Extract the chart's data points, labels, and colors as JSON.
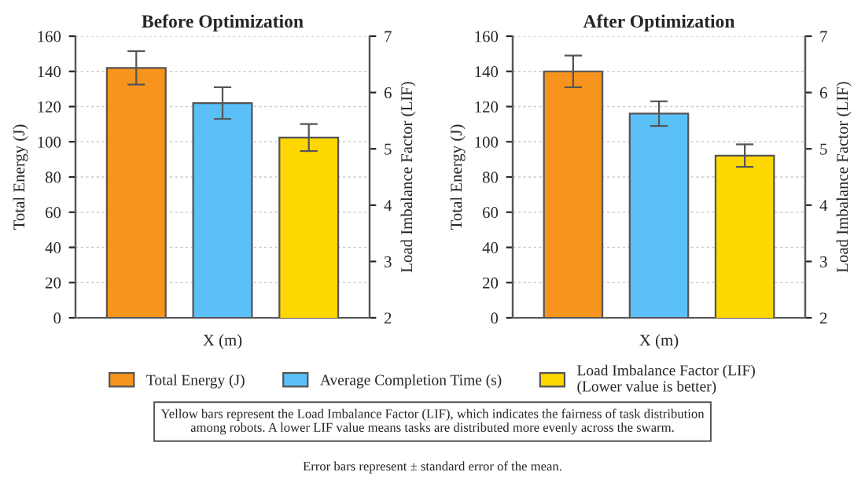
{
  "chart_data": [
    {
      "type": "bar",
      "title": "Before Optimization",
      "xlabel": "X (m)",
      "ylabel": "Total Energy (J)",
      "y2label": "Load Imbalance Factor (LIF)",
      "categories": [
        null
      ],
      "series": [
        {
          "name": "Total Energy (J)",
          "color": "#f7941d",
          "values": [
            142
          ],
          "errors": [
            9.5
          ]
        },
        {
          "name": "Average Completion Time (s)",
          "color": "#5bc0f8",
          "values": [
            122
          ],
          "errors": [
            9
          ]
        },
        {
          "name": "Load Imbalance Factor (LIF)\n(Lower value is better)",
          "color": "#ffd700",
          "values": [
            5.2
          ],
          "errors": [
            0.24
          ],
          "axis": "y2"
        }
      ],
      "ylim": [
        0,
        160
      ],
      "yticks": [
        0,
        20,
        40,
        60,
        80,
        100,
        120,
        140,
        160
      ],
      "y2lim": [
        2,
        7
      ],
      "y2ticks": [
        2,
        3,
        4,
        5,
        6,
        7
      ],
      "grid": "y",
      "legend": "bottom",
      "annotations": [
        "Yellow bars represent the Load Imbalance Factor (LIF), which indicates the fairness of task distribution\namong robots. A lower LIF value means tasks are distributed more evenly across the swarm.",
        "Error bars represent ± standard error of the mean."
      ]
    },
    {
      "type": "bar",
      "title": "After Optimization",
      "xlabel": "X (m)",
      "ylabel": "Total Energy (J)",
      "y2label": "Load Imbalance Factor (LIF)",
      "categories": [
        null
      ],
      "series": [
        {
          "color": "#f7941d",
          "values": [
            140
          ],
          "errors": [
            9
          ]
        },
        {
          "color": "#5bc0f8",
          "values": [
            116
          ],
          "errors": [
            7
          ]
        },
        {
          "color": "#ffd700",
          "values": [
            4.88
          ],
          "errors": [
            0.2
          ],
          "axis": "y2"
        }
      ],
      "ylim": [
        0,
        160
      ],
      "yticks": [
        0,
        20,
        40,
        60,
        80,
        100,
        120,
        140,
        160
      ],
      "y2lim": [
        2,
        7
      ],
      "y2ticks": [
        2,
        3,
        4,
        5,
        6,
        7
      ],
      "grid": "y"
    }
  ]
}
